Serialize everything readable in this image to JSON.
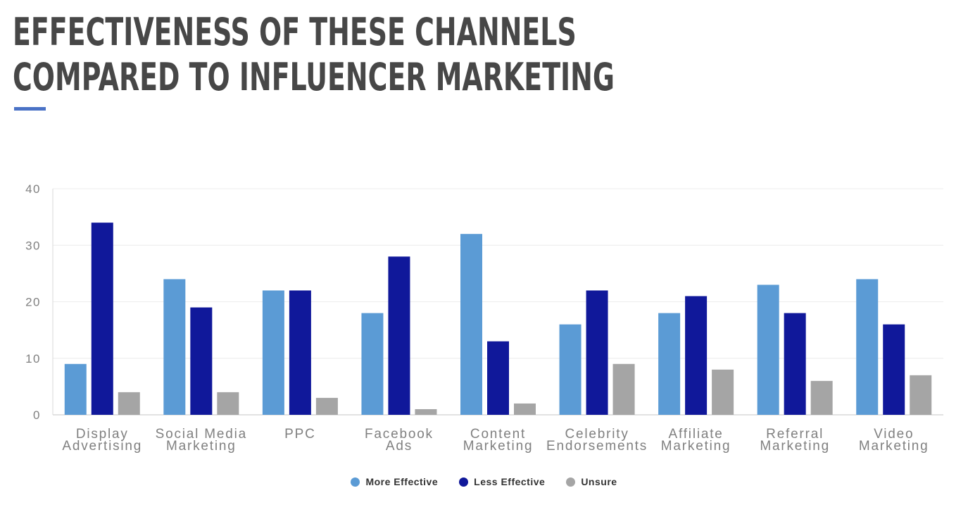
{
  "page": {
    "title_line1": "EFFECTIVENESS OF THESE CHANNELS",
    "title_line2": "COMPARED TO INFLUENCER MARKETING",
    "accent_color": "#4a72c6"
  },
  "chart_data": {
    "type": "bar",
    "categories": [
      [
        "Display",
        "Advertising"
      ],
      [
        "Social Media",
        "Marketing"
      ],
      [
        "PPC"
      ],
      [
        "Facebook",
        "Ads"
      ],
      [
        "Content",
        "Marketing"
      ],
      [
        "Celebrity",
        "Endorsements"
      ],
      [
        "Affiliate",
        "Marketing"
      ],
      [
        "Referral",
        "Marketing"
      ],
      [
        "Video",
        "Marketing"
      ]
    ],
    "series": [
      {
        "name": "More Effective",
        "color": "#5b9bd5",
        "values": [
          9,
          24,
          22,
          18,
          32,
          16,
          18,
          23,
          24
        ]
      },
      {
        "name": "Less Effective",
        "color": "#10189a",
        "values": [
          34,
          19,
          22,
          28,
          13,
          22,
          21,
          18,
          16
        ]
      },
      {
        "name": "Unsure",
        "color": "#a5a5a5",
        "values": [
          4,
          4,
          3,
          1,
          2,
          9,
          8,
          6,
          7
        ]
      }
    ],
    "yticks": [
      0,
      10,
      20,
      30,
      40
    ],
    "ylim": [
      0,
      40
    ],
    "grid": true,
    "legend_position": "bottom-center"
  }
}
